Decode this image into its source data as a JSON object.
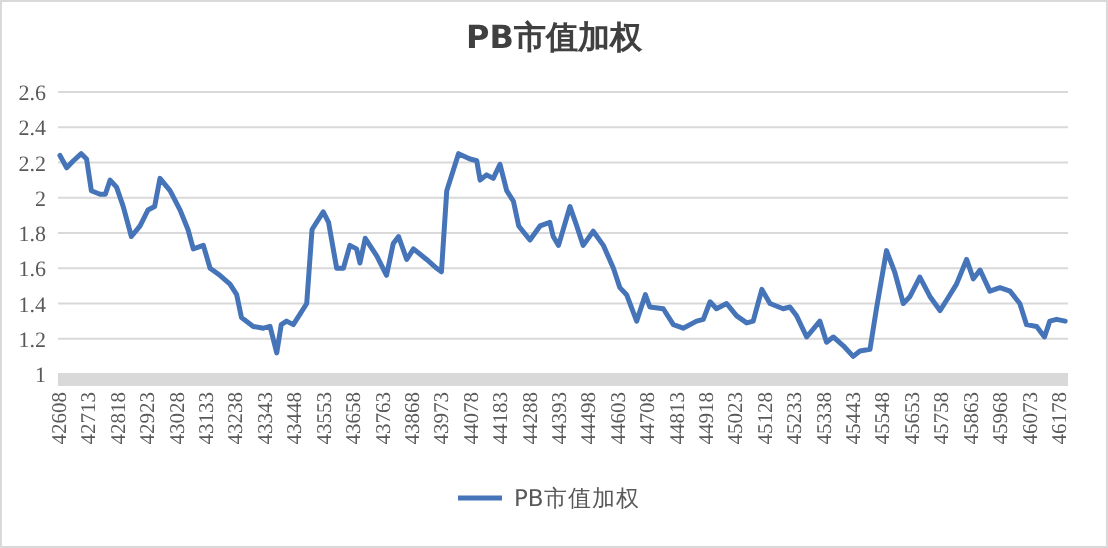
{
  "chart_data": {
    "type": "line",
    "title": "PB市值加权",
    "legend": "bottom",
    "grid": "y",
    "marker": "none",
    "line_style": "solid",
    "xlim": [
      42608,
      46214
    ],
    "xticks": [
      42608,
      42713,
      42818,
      42923,
      43028,
      43133,
      43238,
      43343,
      43448,
      43553,
      43658,
      43763,
      43868,
      43973,
      44078,
      44183,
      44288,
      44393,
      44498,
      44603,
      44708,
      44813,
      44918,
      45023,
      45128,
      45233,
      45338,
      45443,
      45548,
      45653,
      45758,
      45863,
      45968,
      46073,
      46178
    ],
    "ylim": [
      1,
      2.6
    ],
    "yticks": [
      1,
      1.2,
      1.4,
      1.6,
      1.8,
      2,
      2.2,
      2.4,
      2.6
    ],
    "series": [
      {
        "name": "PB市值加权",
        "color": "#4674b8",
        "x": [
          42615,
          42639,
          42663,
          42691,
          42710,
          42727,
          42758,
          42777,
          42794,
          42817,
          42841,
          42870,
          42901,
          42929,
          42953,
          42972,
          43008,
          43044,
          43072,
          43091,
          43127,
          43151,
          43186,
          43222,
          43246,
          43263,
          43305,
          43341,
          43365,
          43389,
          43405,
          43424,
          43448,
          43472,
          43496,
          43515,
          43555,
          43574,
          43603,
          43627,
          43650,
          43674,
          43686,
          43705,
          43746,
          43781,
          43805,
          43824,
          43853,
          43877,
          43924,
          43960,
          43977,
          43996,
          44038,
          44079,
          44103,
          44115,
          44138,
          44162,
          44186,
          44210,
          44234,
          44253,
          44293,
          44329,
          44364,
          44376,
          44395,
          44436,
          44460,
          44483,
          44519,
          44555,
          44591,
          44614,
          44638,
          44674,
          44705,
          44721,
          44769,
          44805,
          44840,
          44888,
          44912,
          44936,
          44959,
          44995,
          45031,
          45067,
          45090,
          45121,
          45150,
          45197,
          45221,
          45245,
          45281,
          45328,
          45352,
          45376,
          45412,
          45447,
          45471,
          45507,
          45531,
          45566,
          45595,
          45626,
          45650,
          45685,
          45721,
          45757,
          45781,
          45816,
          45852,
          45876,
          45900,
          45935,
          45971,
          46007,
          46042,
          46066,
          46102,
          46130,
          46149,
          46173,
          46204
        ],
        "values": [
          2.24,
          2.17,
          2.21,
          2.25,
          2.22,
          2.04,
          2.02,
          2.02,
          2.1,
          2.06,
          1.95,
          1.78,
          1.84,
          1.93,
          1.95,
          2.11,
          2.04,
          1.93,
          1.82,
          1.71,
          1.73,
          1.6,
          1.56,
          1.51,
          1.45,
          1.32,
          1.27,
          1.26,
          1.27,
          1.12,
          1.28,
          1.3,
          1.28,
          1.34,
          1.4,
          1.82,
          1.92,
          1.86,
          1.6,
          1.6,
          1.73,
          1.71,
          1.63,
          1.77,
          1.67,
          1.56,
          1.74,
          1.78,
          1.65,
          1.71,
          1.65,
          1.6,
          1.58,
          2.04,
          2.25,
          2.22,
          2.21,
          2.1,
          2.13,
          2.11,
          2.19,
          2.04,
          1.98,
          1.84,
          1.76,
          1.84,
          1.86,
          1.78,
          1.73,
          1.95,
          1.84,
          1.73,
          1.81,
          1.73,
          1.6,
          1.49,
          1.45,
          1.3,
          1.45,
          1.38,
          1.37,
          1.28,
          1.26,
          1.3,
          1.31,
          1.41,
          1.37,
          1.4,
          1.33,
          1.29,
          1.3,
          1.48,
          1.4,
          1.37,
          1.38,
          1.33,
          1.21,
          1.3,
          1.18,
          1.21,
          1.16,
          1.1,
          1.13,
          1.14,
          1.38,
          1.7,
          1.58,
          1.4,
          1.44,
          1.55,
          1.44,
          1.36,
          1.42,
          1.51,
          1.65,
          1.54,
          1.59,
          1.47,
          1.49,
          1.47,
          1.4,
          1.28,
          1.27,
          1.21,
          1.3,
          1.31,
          1.3
        ]
      }
    ]
  }
}
